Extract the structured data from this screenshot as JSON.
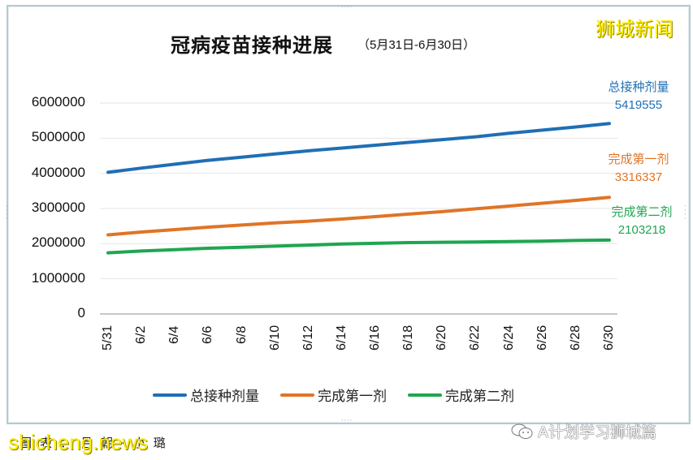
{
  "header": {
    "title": "冠病疫苗接种进展",
    "subtitle": "（5月31日-6月30日）",
    "watermark": "狮城新闻"
  },
  "footer": {
    "credit": "图表：吕朝·小璐",
    "watermark": "shicheng.news",
    "wechat_account": "A计划学习狮城篇"
  },
  "colors": {
    "total": "#1f6fb4",
    "first_dose": "#e07426",
    "second_dose": "#1fa651",
    "gridline": "#e6e6e6",
    "axis": "#a6a6a6"
  },
  "end_labels": {
    "total": {
      "label": "总接种剂量",
      "value": "5419555"
    },
    "first_dose": {
      "label": "完成第一剂",
      "value": "3316337"
    },
    "second_dose": {
      "label": "完成第二剂",
      "value": "2103218"
    }
  },
  "legend": [
    {
      "label": "总接种剂量",
      "color": "#1f6fb4"
    },
    {
      "label": "完成第一剂",
      "color": "#e07426"
    },
    {
      "label": "完成第二剂",
      "color": "#1fa651"
    }
  ],
  "y_ticks": [
    "6000000",
    "5000000",
    "4000000",
    "3000000",
    "2000000",
    "1000000",
    "0"
  ],
  "x_ticks": [
    "5/31",
    "6/2",
    "6/4",
    "6/6",
    "6/8",
    "6/10",
    "6/12",
    "6/14",
    "6/16",
    "6/18",
    "6/20",
    "6/22",
    "6/24",
    "6/26",
    "6/28",
    "6/30"
  ],
  "chart_data": {
    "type": "line",
    "title": "冠病疫苗接种进展（5月31日-6月30日）",
    "xlabel": "",
    "ylabel": "",
    "ylim": [
      0,
      6000000
    ],
    "grid": true,
    "legend_position": "bottom",
    "categories": [
      "5/31",
      "6/2",
      "6/4",
      "6/6",
      "6/8",
      "6/10",
      "6/12",
      "6/14",
      "6/16",
      "6/18",
      "6/20",
      "6/22",
      "6/24",
      "6/26",
      "6/28",
      "6/30"
    ],
    "series": [
      {
        "name": "总接种剂量",
        "color": "#1f6fb4",
        "values": [
          4030000,
          4150000,
          4260000,
          4370000,
          4460000,
          4550000,
          4640000,
          4720000,
          4800000,
          4880000,
          4960000,
          5040000,
          5140000,
          5230000,
          5320000,
          5419555
        ]
      },
      {
        "name": "完成第一剂",
        "color": "#e07426",
        "values": [
          2250000,
          2330000,
          2400000,
          2470000,
          2530000,
          2590000,
          2640000,
          2700000,
          2770000,
          2840000,
          2910000,
          2990000,
          3070000,
          3150000,
          3230000,
          3316337
        ]
      },
      {
        "name": "完成第二剂",
        "color": "#1fa651",
        "values": [
          1740000,
          1790000,
          1830000,
          1870000,
          1900000,
          1930000,
          1960000,
          1990000,
          2010000,
          2030000,
          2040000,
          2050000,
          2060000,
          2070000,
          2090000,
          2103218
        ]
      }
    ],
    "annotations": [
      {
        "text": "总接种剂量 5419555",
        "at": "6/30"
      },
      {
        "text": "完成第一剂 3316337",
        "at": "6/30"
      },
      {
        "text": "完成第二剂 2103218",
        "at": "6/30"
      }
    ]
  }
}
